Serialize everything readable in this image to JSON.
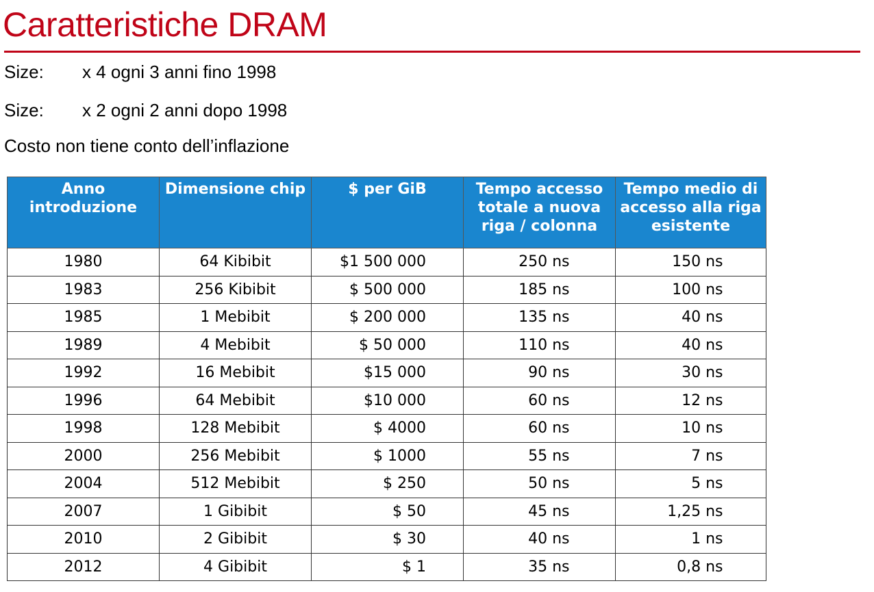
{
  "title": "Caratteristiche DRAM",
  "notes": [
    {
      "label": "Size:",
      "text": "x 4 ogni 3 anni fino 1998"
    },
    {
      "label": "Size:",
      "text": "x 2 ogni 2 anni dopo 1998"
    },
    {
      "label": "",
      "text": "Costo non tiene conto dell’inflazione"
    }
  ],
  "colors": {
    "accent": "#c00418",
    "header_bg": "#1a86cf"
  },
  "table": {
    "headers": [
      "Anno introduzione",
      "Dimensione chip",
      "$ per GiB",
      "Tempo accesso totale a nuova riga / colonna",
      "Tempo medio di accesso alla riga esistente"
    ],
    "rows": [
      [
        "1980",
        "64 Kibibit",
        "$1 500 000",
        "250 ns",
        "150 ns"
      ],
      [
        "1983",
        "256 Kibibit",
        "$ 500 000",
        "185 ns",
        "100 ns"
      ],
      [
        "1985",
        "1 Mebibit",
        "$ 200 000",
        "135 ns",
        "40 ns"
      ],
      [
        "1989",
        "4 Mebibit",
        "$ 50 000",
        "110 ns",
        "40 ns"
      ],
      [
        "1992",
        "16 Mebibit",
        "$15 000",
        "90 ns",
        "30 ns"
      ],
      [
        "1996",
        "64 Mebibit",
        "$10 000",
        "60 ns",
        "12 ns"
      ],
      [
        "1998",
        "128 Mebibit",
        "$ 4000",
        "60 ns",
        "10 ns"
      ],
      [
        "2000",
        "256 Mebibit",
        "$ 1000",
        "55 ns",
        "7 ns"
      ],
      [
        "2004",
        "512 Mebibit",
        "$ 250",
        "50 ns",
        "5 ns"
      ],
      [
        "2007",
        "1 Gibibit",
        "$ 50",
        "45 ns",
        "1,25 ns"
      ],
      [
        "2010",
        "2 Gibibit",
        "$ 30",
        "40 ns",
        "1 ns"
      ],
      [
        "2012",
        "4 Gibibit",
        "$ 1",
        "35 ns",
        "0,8 ns"
      ]
    ]
  }
}
